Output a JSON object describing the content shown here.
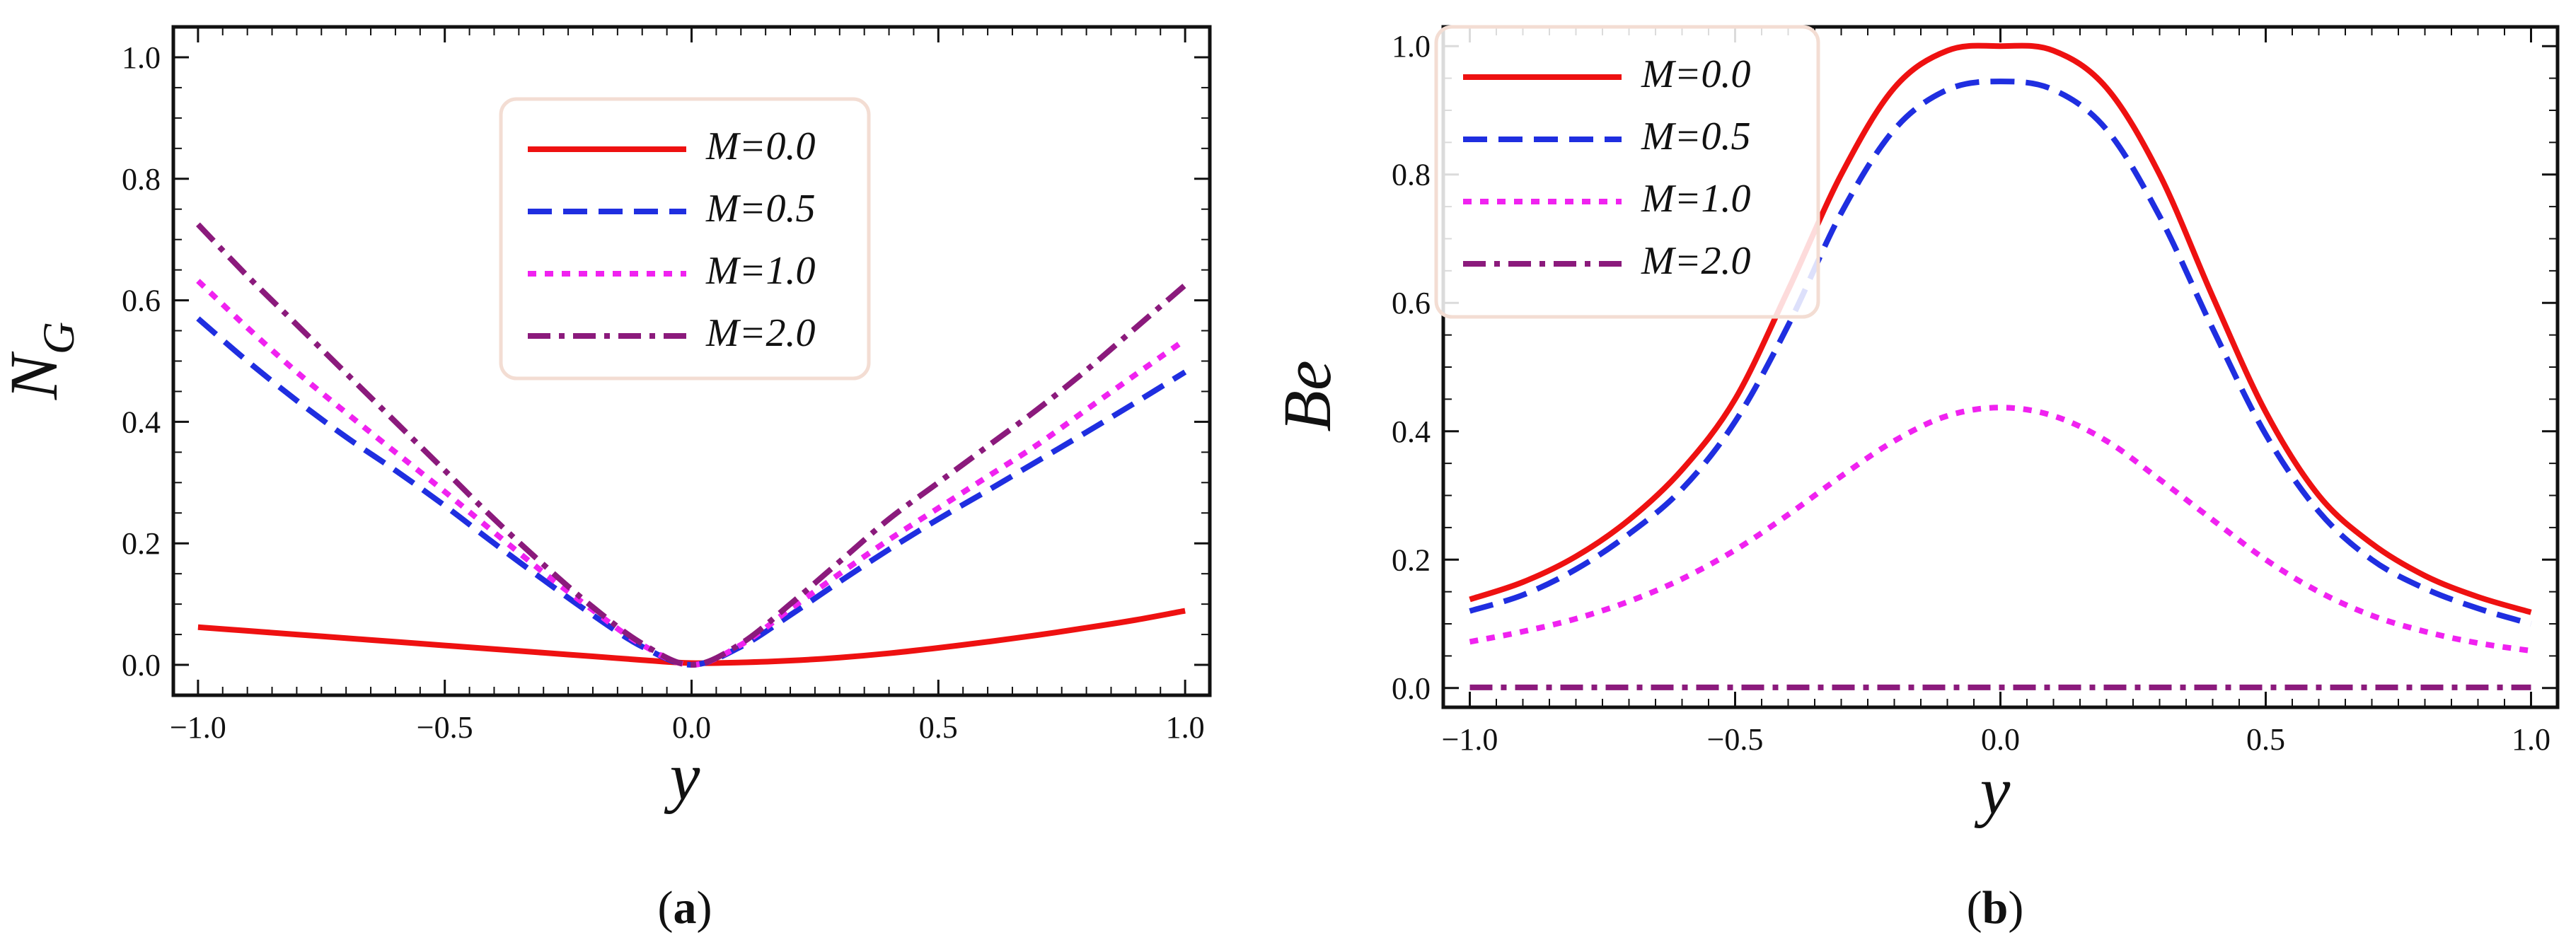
{
  "chart_data": [
    {
      "id": "a",
      "type": "line",
      "caption_letter": "a",
      "xlabel": "y",
      "ylabel": "N",
      "ylabel_sub": "G",
      "xlim": [
        -1.05,
        1.05
      ],
      "ylim": [
        -0.05,
        1.05
      ],
      "xticks": [
        -1.0,
        -0.5,
        0.0,
        0.5,
        1.0
      ],
      "xtick_labels": [
        "−1.0",
        "−0.5",
        "0.0",
        "0.5",
        "1.0"
      ],
      "yticks": [
        0.0,
        0.2,
        0.4,
        0.6,
        0.8,
        1.0
      ],
      "ytick_labels": [
        "0.0",
        "0.2",
        "0.4",
        "0.6",
        "0.8",
        "1.0"
      ],
      "legend_position": "top-right",
      "x": [
        -1.0,
        -0.9,
        -0.8,
        -0.7,
        -0.6,
        -0.5,
        -0.4,
        -0.3,
        -0.2,
        -0.1,
        0.0,
        0.1,
        0.2,
        0.3,
        0.4,
        0.5,
        0.6,
        0.7,
        0.8,
        0.9,
        1.0
      ],
      "series": [
        {
          "name": "M=0.0",
          "color": "#ee1111",
          "dash": "solid",
          "values": [
            0.062,
            0.056,
            0.05,
            0.044,
            0.038,
            0.032,
            0.026,
            0.02,
            0.014,
            0.008,
            0.003,
            0.004,
            0.007,
            0.012,
            0.019,
            0.028,
            0.038,
            0.049,
            0.061,
            0.074,
            0.089
          ]
        },
        {
          "name": "M=0.5",
          "color": "#1f2ee0",
          "dash": "dashed",
          "values": [
            0.57,
            0.5,
            0.435,
            0.375,
            0.32,
            0.262,
            0.2,
            0.14,
            0.082,
            0.03,
            0.0,
            0.03,
            0.082,
            0.137,
            0.19,
            0.24,
            0.287,
            0.335,
            0.383,
            0.432,
            0.482
          ]
        },
        {
          "name": "M=1.0",
          "color": "#f022f0",
          "dash": "dotted",
          "values": [
            0.632,
            0.555,
            0.482,
            0.415,
            0.35,
            0.285,
            0.218,
            0.152,
            0.09,
            0.033,
            0.0,
            0.033,
            0.092,
            0.15,
            0.206,
            0.258,
            0.31,
            0.362,
            0.42,
            0.478,
            0.535
          ]
        },
        {
          "name": "M=2.0",
          "color": "#8b1a7c",
          "dash": "dashdot",
          "values": [
            0.725,
            0.64,
            0.56,
            0.48,
            0.4,
            0.32,
            0.24,
            0.165,
            0.095,
            0.035,
            0.0,
            0.035,
            0.1,
            0.17,
            0.24,
            0.3,
            0.36,
            0.42,
            0.485,
            0.555,
            0.625
          ]
        }
      ]
    },
    {
      "id": "b",
      "type": "line",
      "caption_letter": "b",
      "xlabel": "y",
      "ylabel": "Be",
      "ylabel_sub": "",
      "xlim": [
        -1.05,
        1.05
      ],
      "ylim": [
        -0.03,
        1.03
      ],
      "xticks": [
        -1.0,
        -0.5,
        0.0,
        0.5,
        1.0
      ],
      "xtick_labels": [
        "−1.0",
        "−0.5",
        "0.0",
        "0.5",
        "1.0"
      ],
      "yticks": [
        0.0,
        0.2,
        0.4,
        0.6,
        0.8,
        1.0
      ],
      "ytick_labels": [
        "0.0",
        "0.2",
        "0.4",
        "0.6",
        "0.8",
        "1.0"
      ],
      "legend_position": "top-left",
      "x": [
        -1.0,
        -0.9,
        -0.8,
        -0.7,
        -0.6,
        -0.5,
        -0.4,
        -0.3,
        -0.2,
        -0.1,
        0.0,
        0.1,
        0.2,
        0.3,
        0.4,
        0.5,
        0.6,
        0.7,
        0.8,
        0.9,
        1.0
      ],
      "series": [
        {
          "name": "M=0.0",
          "color": "#ee1111",
          "dash": "solid",
          "values": [
            0.138,
            0.165,
            0.205,
            0.262,
            0.34,
            0.45,
            0.62,
            0.8,
            0.935,
            0.993,
            1.0,
            0.993,
            0.935,
            0.8,
            0.61,
            0.43,
            0.3,
            0.225,
            0.175,
            0.142,
            0.118
          ]
        },
        {
          "name": "M=0.5",
          "color": "#1f2ee0",
          "dash": "dashed",
          "values": [
            0.12,
            0.145,
            0.185,
            0.24,
            0.31,
            0.415,
            0.565,
            0.74,
            0.87,
            0.932,
            0.945,
            0.932,
            0.87,
            0.735,
            0.56,
            0.395,
            0.275,
            0.2,
            0.155,
            0.124,
            0.1
          ]
        },
        {
          "name": "M=1.0",
          "color": "#f022f0",
          "dash": "dotted",
          "values": [
            0.072,
            0.088,
            0.108,
            0.135,
            0.17,
            0.215,
            0.27,
            0.33,
            0.385,
            0.424,
            0.437,
            0.424,
            0.385,
            0.325,
            0.262,
            0.2,
            0.15,
            0.113,
            0.088,
            0.07,
            0.058
          ]
        },
        {
          "name": "M=2.0",
          "color": "#8b1a7c",
          "dash": "dashdot",
          "values": [
            0.001,
            0.001,
            0.001,
            0.001,
            0.001,
            0.001,
            0.001,
            0.001,
            0.001,
            0.001,
            0.001,
            0.001,
            0.001,
            0.001,
            0.001,
            0.001,
            0.001,
            0.001,
            0.001,
            0.001,
            0.001
          ]
        }
      ]
    }
  ]
}
